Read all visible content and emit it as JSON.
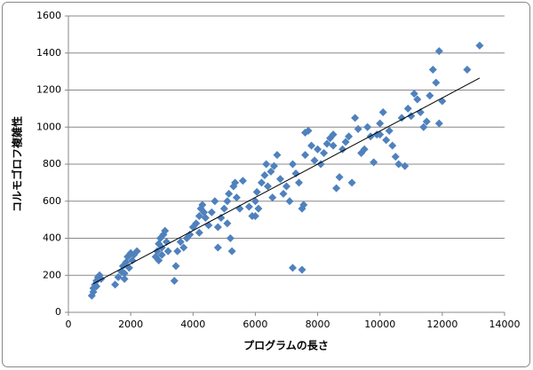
{
  "chart_data": {
    "type": "scatter",
    "x_label": "プログラムの長さ",
    "y_label": "コルモゴロフ複雑性",
    "x": [
      750,
      800,
      850,
      900,
      950,
      1000,
      1050,
      800,
      900,
      1500,
      1600,
      1700,
      1750,
      1800,
      1850,
      1900,
      1950,
      2000,
      2050,
      2100,
      2200,
      1800,
      2800,
      2850,
      2900,
      2950,
      3000,
      3050,
      3100,
      3150,
      3200,
      2900,
      3000,
      3400,
      3450,
      3500,
      3600,
      3700,
      3800,
      3900,
      4000,
      4100,
      4200,
      4250,
      4300,
      4350,
      4400,
      4200,
      4600,
      4700,
      4800,
      4800,
      4900,
      5000,
      5100,
      5150,
      5200,
      5250,
      5300,
      5350,
      5400,
      5500,
      5600,
      5100,
      5800,
      5900,
      6000,
      6050,
      6100,
      6200,
      6300,
      6350,
      6400,
      6500,
      6550,
      6600,
      6700,
      6800,
      6900,
      7000,
      7100,
      7200,
      7200,
      7300,
      7400,
      7500,
      7500,
      7550,
      7600,
      7700,
      7600,
      7800,
      7900,
      8000,
      8100,
      8200,
      8300,
      8400,
      8500,
      8600,
      8700,
      8800,
      8900,
      9000,
      9100,
      9200,
      9300,
      9400,
      9500,
      9600,
      9700,
      9800,
      9900,
      10000,
      10100,
      10200,
      10300,
      10400,
      10500,
      10600,
      10700,
      10800,
      10900,
      11000,
      11100,
      11200,
      11300,
      11400,
      11500,
      11700,
      11800,
      11900,
      11900,
      12000,
      12800,
      13200,
      11600,
      10000,
      8500,
      6000,
      4500
    ],
    "values": [
      90,
      130,
      150,
      170,
      190,
      200,
      180,
      110,
      140,
      150,
      190,
      220,
      250,
      210,
      270,
      300,
      240,
      320,
      280,
      310,
      330,
      180,
      300,
      330,
      370,
      400,
      350,
      420,
      440,
      380,
      330,
      280,
      310,
      170,
      250,
      330,
      380,
      350,
      400,
      420,
      460,
      480,
      520,
      560,
      580,
      540,
      510,
      430,
      540,
      600,
      460,
      350,
      510,
      560,
      600,
      640,
      400,
      330,
      680,
      700,
      620,
      560,
      710,
      480,
      570,
      520,
      600,
      650,
      560,
      700,
      740,
      800,
      680,
      760,
      620,
      790,
      850,
      720,
      640,
      680,
      600,
      800,
      240,
      750,
      700,
      230,
      560,
      580,
      850,
      980,
      970,
      900,
      820,
      880,
      800,
      860,
      910,
      940,
      960,
      670,
      730,
      880,
      920,
      950,
      700,
      1050,
      990,
      860,
      880,
      1000,
      950,
      810,
      960,
      1020,
      1080,
      930,
      980,
      900,
      840,
      800,
      1050,
      790,
      1100,
      1060,
      1180,
      1150,
      1080,
      1000,
      1030,
      1310,
      1240,
      1410,
      1020,
      1140,
      1310,
      1440,
      1170,
      960,
      900,
      520,
      470
    ],
    "color": "#4f81bd",
    "trendline": {
      "x": [
        800,
        13200
      ],
      "y": [
        155,
        1265
      ],
      "color": "#000000"
    },
    "xlim": [
      0,
      14000
    ],
    "xticks": [
      0,
      2000,
      4000,
      6000,
      8000,
      10000,
      12000,
      14000
    ],
    "ylim": [
      0,
      1600
    ],
    "yticks": [
      0,
      200,
      400,
      600,
      800,
      1000,
      1200,
      1400,
      1600
    ],
    "grid": true
  }
}
